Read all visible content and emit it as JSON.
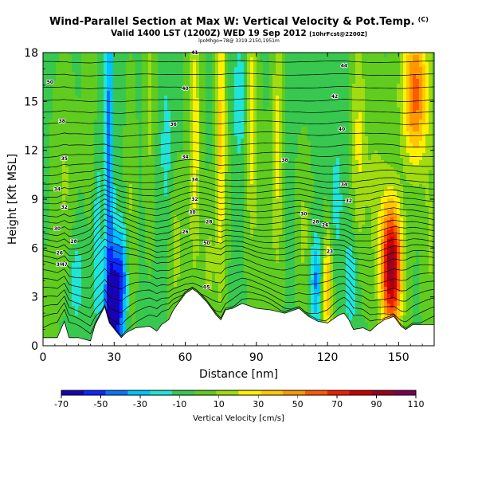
{
  "header": {
    "title": "Wind-Parallel Section at Max W: Vertical Velocity & Pot.Temp.",
    "title_mark": "(C)",
    "subtitle_main": "Valid 1400 LST (1200Z) WED 19 Sep 2012",
    "subtitle_small": "[10hrFcst@2200Z]",
    "subsubtitle": "lpoMhgo=78@ 3319.2150,1951m"
  },
  "chart_data": {
    "type": "heatmap",
    "xlabel": "Distance [nm]",
    "ylabel": "Height [Kft MSL]",
    "xlim": [
      0,
      165
    ],
    "ylim": [
      0,
      18
    ],
    "xticks": [
      0,
      30,
      60,
      90,
      120,
      150
    ],
    "yticks": [
      0,
      3,
      6,
      9,
      12,
      15,
      18
    ],
    "colorbar": {
      "label": "Vertical Velocity [cm/s]",
      "ticks": [
        -70,
        -50,
        -30,
        -10,
        10,
        30,
        50,
        70,
        90,
        110
      ],
      "range": [
        -70,
        110
      ],
      "colors": [
        "#1a00b4",
        "#0a28ff",
        "#0a74ff",
        "#00c4ff",
        "#20e4d8",
        "#38c850",
        "#60cc20",
        "#a0dc10",
        "#fff000",
        "#ffc800",
        "#ff9800",
        "#ff5a00",
        "#f01e00",
        "#c80000",
        "#9a0020",
        "#7a0050"
      ]
    },
    "background_value": -4,
    "terrain": {
      "x": [
        0,
        6,
        9,
        11,
        15,
        20,
        22,
        26,
        28,
        33,
        35,
        39,
        45,
        48,
        50,
        53,
        55,
        57,
        60,
        63,
        65,
        67,
        69,
        71,
        73,
        75,
        77,
        80,
        84,
        90,
        96,
        102,
        108,
        112,
        116,
        120,
        125,
        127,
        129,
        131,
        135,
        138,
        141,
        144,
        148,
        151,
        153,
        156,
        165
      ],
      "height_kft": [
        0.5,
        0.5,
        1.5,
        0.5,
        0.5,
        0.3,
        1.3,
        2.4,
        1.4,
        0.5,
        0.8,
        1.1,
        1.2,
        0.9,
        1.3,
        1.6,
        2.2,
        2.6,
        3.2,
        3.5,
        3.3,
        3.0,
        2.7,
        2.3,
        1.9,
        1.6,
        2.2,
        2.3,
        2.6,
        2.3,
        2.2,
        2.0,
        2.3,
        1.8,
        1.5,
        1.4,
        1.9,
        2.0,
        1.6,
        1.0,
        1.1,
        0.9,
        1.3,
        1.6,
        1.8,
        1.2,
        1.0,
        1.3,
        1.3
      ]
    },
    "w_features": [
      {
        "x": 30,
        "z": 2.2,
        "sx": 3,
        "sz": 2.6,
        "w": -62
      },
      {
        "x": 28,
        "z": 12,
        "sx": 1.3,
        "sz": 8,
        "w": -38
      },
      {
        "x": 23,
        "z": 7,
        "sx": 1.2,
        "sz": 5,
        "w": -16
      },
      {
        "x": 33,
        "z": 5,
        "sx": 2,
        "sz": 2,
        "w": -24
      },
      {
        "x": 147,
        "z": 4.8,
        "sx": 3.2,
        "sz": 2.8,
        "w": 100
      },
      {
        "x": 120,
        "z": 3.5,
        "sx": 1.4,
        "sz": 2.4,
        "w": 46
      },
      {
        "x": 115,
        "z": 4,
        "sx": 1.6,
        "sz": 2,
        "w": -34
      },
      {
        "x": 130,
        "z": 4,
        "sx": 2,
        "sz": 2,
        "w": -22
      },
      {
        "x": 157,
        "z": 15.5,
        "sx": 4,
        "sz": 3.2,
        "w": 62
      },
      {
        "x": 64,
        "z": 13,
        "sx": 1.8,
        "sz": 6,
        "w": 32
      },
      {
        "x": 75,
        "z": 13,
        "sx": 1.6,
        "sz": 7,
        "w": 38
      },
      {
        "x": 88,
        "z": 14,
        "sx": 1.7,
        "sz": 5,
        "w": 32
      },
      {
        "x": 99,
        "z": 13,
        "sx": 1.5,
        "sz": 6,
        "w": 26
      },
      {
        "x": 133,
        "z": 13,
        "sx": 2,
        "sz": 5,
        "w": 24
      },
      {
        "x": 45,
        "z": 15,
        "sx": 1.5,
        "sz": 5,
        "w": 16
      },
      {
        "x": 37,
        "z": 8,
        "sx": 1.5,
        "sz": 5,
        "w": 14
      },
      {
        "x": 9,
        "z": 10,
        "sx": 3,
        "sz": 4,
        "w": 14
      },
      {
        "x": 20,
        "z": 15,
        "sx": 2,
        "sz": 4,
        "w": 12
      },
      {
        "x": 56,
        "z": 6,
        "sx": 2,
        "sz": 3,
        "w": 18
      },
      {
        "x": 70,
        "z": 5,
        "sx": 2,
        "sz": 2.5,
        "w": 16
      },
      {
        "x": 94,
        "z": 8,
        "sx": 3,
        "sz": 3,
        "w": 12
      },
      {
        "x": 110,
        "z": 7,
        "sx": 2,
        "sz": 3,
        "w": 16
      },
      {
        "x": 140,
        "z": 10,
        "sx": 4,
        "sz": 4,
        "w": 14
      },
      {
        "x": 163,
        "z": 6,
        "sx": 2,
        "sz": 4,
        "w": 14
      },
      {
        "x": 2,
        "z": 2,
        "sx": 2,
        "sz": 2,
        "w": 10
      },
      {
        "x": 83,
        "z": 15,
        "sx": 2,
        "sz": 3,
        "w": -18
      },
      {
        "x": 52,
        "z": 12,
        "sx": 2,
        "sz": 4,
        "w": -14
      },
      {
        "x": 124,
        "z": 9,
        "sx": 2,
        "sz": 3,
        "w": -14
      },
      {
        "x": 14,
        "z": 4,
        "sx": 2,
        "sz": 2,
        "w": -18
      }
    ],
    "theta_isentropes": {
      "levels_kft": [
        0.6,
        1.2,
        1.8,
        2.4,
        3.0,
        3.6,
        4.2,
        4.8,
        5.2,
        5.6,
        6.0,
        6.4,
        6.8,
        7.2,
        7.6,
        8.0,
        8.4,
        8.8,
        9.2,
        9.6,
        10.0,
        10.5,
        11.0,
        11.6,
        12.2,
        12.9,
        13.6,
        14.3,
        15.0,
        15.8,
        16.6,
        17.4
      ]
    },
    "theta_labels": [
      {
        "text": "50",
        "x": 3,
        "z": 16.2
      },
      {
        "text": "38",
        "x": 8,
        "z": 13.8
      },
      {
        "text": "35",
        "x": 9,
        "z": 11.5
      },
      {
        "text": "34",
        "x": 6,
        "z": 9.6
      },
      {
        "text": "32",
        "x": 9,
        "z": 8.5
      },
      {
        "text": "30",
        "x": 6,
        "z": 7.2
      },
      {
        "text": "26",
        "x": 7,
        "z": 5.7
      },
      {
        "text": "30",
        "x": 7,
        "z": 5.0
      },
      {
        "text": "47",
        "x": 9,
        "z": 5.0
      },
      {
        "text": "28",
        "x": 13,
        "z": 6.4
      },
      {
        "text": "41",
        "x": 64,
        "z": 18
      },
      {
        "text": "40",
        "x": 60,
        "z": 15.8
      },
      {
        "text": "36",
        "x": 55,
        "z": 13.6
      },
      {
        "text": "34",
        "x": 60,
        "z": 11.6
      },
      {
        "text": "34",
        "x": 64,
        "z": 10.2
      },
      {
        "text": "32",
        "x": 64,
        "z": 9.0
      },
      {
        "text": "30",
        "x": 63,
        "z": 8.2
      },
      {
        "text": "28",
        "x": 70,
        "z": 7.6
      },
      {
        "text": "26",
        "x": 60,
        "z": 7.0
      },
      {
        "text": "50",
        "x": 69,
        "z": 6.3
      },
      {
        "text": "05",
        "x": 69,
        "z": 3.6
      },
      {
        "text": "44",
        "x": 127,
        "z": 17.2
      },
      {
        "text": "42",
        "x": 123,
        "z": 15.3
      },
      {
        "text": "40",
        "x": 126,
        "z": 13.3
      },
      {
        "text": "38",
        "x": 102,
        "z": 11.4
      },
      {
        "text": "34",
        "x": 127,
        "z": 9.9
      },
      {
        "text": "32",
        "x": 129,
        "z": 8.9
      },
      {
        "text": "30",
        "x": 110,
        "z": 8.1
      },
      {
        "text": "28",
        "x": 115,
        "z": 7.6
      },
      {
        "text": "26",
        "x": 119,
        "z": 7.4
      },
      {
        "text": "23",
        "x": 121,
        "z": 5.8
      }
    ]
  },
  "colors": {
    "frame": "#000000",
    "contour": "#000000",
    "terrain_fill": "#ffffff"
  }
}
